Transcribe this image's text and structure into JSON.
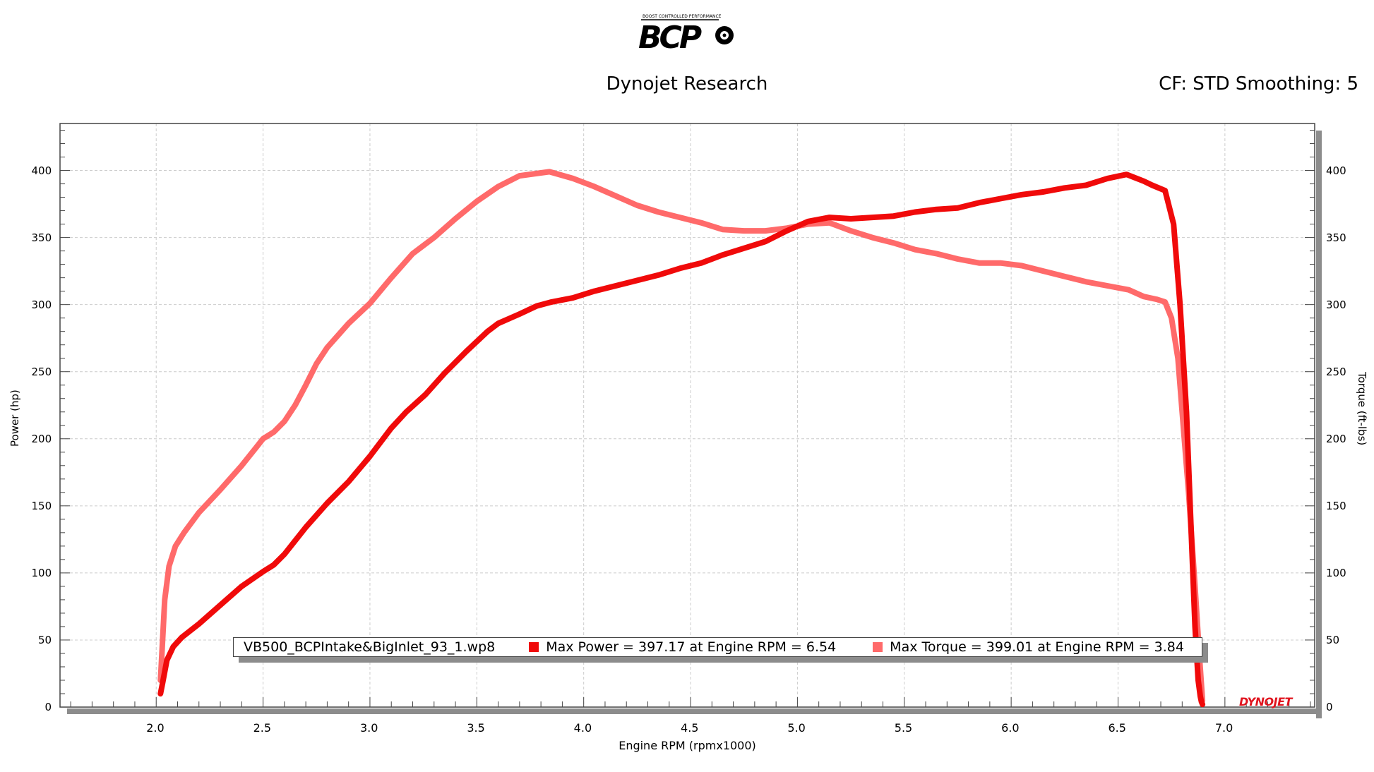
{
  "header": {
    "logo_text": "BCP",
    "logo_tagline": "BOOST CONTROLLED PERFORMANCE",
    "title": "Dynojet Research",
    "cf_info": "CF: STD Smoothing: 5"
  },
  "brand_mark": "DYNOJET",
  "legend": {
    "run_name": "VB500_BCPIntake&BigInlet_93_1.wp8",
    "power_label": "Max Power = 397.17 at Engine RPM = 6.54",
    "torque_label": "Max Torque = 399.01 at Engine RPM = 3.84"
  },
  "colors": {
    "power": "#f00a0a",
    "torque": "#ff6a6a",
    "grid": "#cccccc",
    "axis": "#444444"
  },
  "chart_data": {
    "type": "line",
    "title": "Dynojet Research",
    "xlabel": "Engine RPM (rpmx1000)",
    "ylabel": "Power (hp)",
    "y2label": "Torque (ft-lbs)",
    "xlim": [
      1.55,
      7.42
    ],
    "ylim": [
      0,
      435
    ],
    "y2lim": [
      0,
      435
    ],
    "x_ticks": [
      "2.0",
      "2.5",
      "3.0",
      "3.5",
      "4.0",
      "4.5",
      "5.0",
      "5.5",
      "6.0",
      "6.5",
      "7.0"
    ],
    "y_ticks": [
      "0",
      "50",
      "100",
      "150",
      "200",
      "250",
      "300",
      "350",
      "400"
    ],
    "y2_ticks": [
      "0",
      "50",
      "100",
      "150",
      "200",
      "250",
      "300",
      "350",
      "400"
    ],
    "grid": true,
    "legend_position": "bottom",
    "series": [
      {
        "name": "Max Power = 397.17 at Engine RPM = 6.54",
        "axis": "left",
        "x": [
          2.02,
          2.03,
          2.05,
          2.08,
          2.12,
          2.2,
          2.3,
          2.4,
          2.5,
          2.55,
          2.6,
          2.7,
          2.8,
          2.9,
          3.0,
          3.1,
          3.17,
          3.26,
          3.35,
          3.45,
          3.55,
          3.6,
          3.7,
          3.78,
          3.85,
          3.95,
          4.05,
          4.15,
          4.25,
          4.35,
          4.45,
          4.55,
          4.65,
          4.75,
          4.85,
          4.95,
          5.05,
          5.15,
          5.25,
          5.35,
          5.45,
          5.55,
          5.65,
          5.75,
          5.85,
          5.95,
          6.05,
          6.15,
          6.25,
          6.35,
          6.45,
          6.54,
          6.62,
          6.66,
          6.72,
          6.76,
          6.79,
          6.82,
          6.84,
          6.86,
          6.875,
          6.885,
          6.89,
          6.895
        ],
        "y": [
          10,
          18,
          35,
          45,
          52,
          62,
          76,
          90,
          101,
          106,
          114,
          134,
          152,
          168,
          187,
          208,
          220,
          233,
          249,
          265,
          280,
          286,
          293,
          299,
          302,
          305,
          310,
          314,
          318,
          322,
          327,
          331,
          337,
          342,
          347,
          355,
          362,
          365,
          364,
          365,
          366,
          369,
          371,
          372,
          376,
          379,
          382,
          384,
          387,
          389,
          394,
          397,
          392,
          389,
          385,
          360,
          300,
          220,
          140,
          60,
          20,
          8,
          4,
          2
        ]
      },
      {
        "name": "Max Torque = 399.01 at Engine RPM = 3.84",
        "axis": "right",
        "x": [
          2.02,
          2.03,
          2.04,
          2.06,
          2.09,
          2.13,
          2.2,
          2.3,
          2.4,
          2.45,
          2.5,
          2.55,
          2.6,
          2.65,
          2.7,
          2.75,
          2.8,
          2.9,
          3.0,
          3.1,
          3.2,
          3.3,
          3.4,
          3.5,
          3.6,
          3.7,
          3.84,
          3.95,
          4.05,
          4.15,
          4.25,
          4.35,
          4.45,
          4.55,
          4.65,
          4.75,
          4.85,
          4.95,
          5.05,
          5.15,
          5.25,
          5.35,
          5.45,
          5.55,
          5.65,
          5.75,
          5.85,
          5.95,
          6.05,
          6.15,
          6.25,
          6.35,
          6.45,
          6.55,
          6.62,
          6.68,
          6.72,
          6.75,
          6.78,
          6.8,
          6.83,
          6.86,
          6.88,
          6.895
        ],
        "y": [
          20,
          50,
          80,
          105,
          120,
          130,
          145,
          162,
          180,
          190,
          200,
          205,
          213,
          225,
          240,
          256,
          268,
          286,
          301,
          320,
          338,
          350,
          364,
          377,
          388,
          396,
          399,
          394,
          388,
          381,
          374,
          369,
          365,
          361,
          356,
          355,
          355,
          357,
          360,
          361,
          355,
          350,
          346,
          341,
          338,
          334,
          331,
          331,
          329,
          325,
          321,
          317,
          314,
          311,
          306,
          304,
          302,
          290,
          260,
          220,
          160,
          90,
          40,
          5
        ]
      }
    ]
  }
}
